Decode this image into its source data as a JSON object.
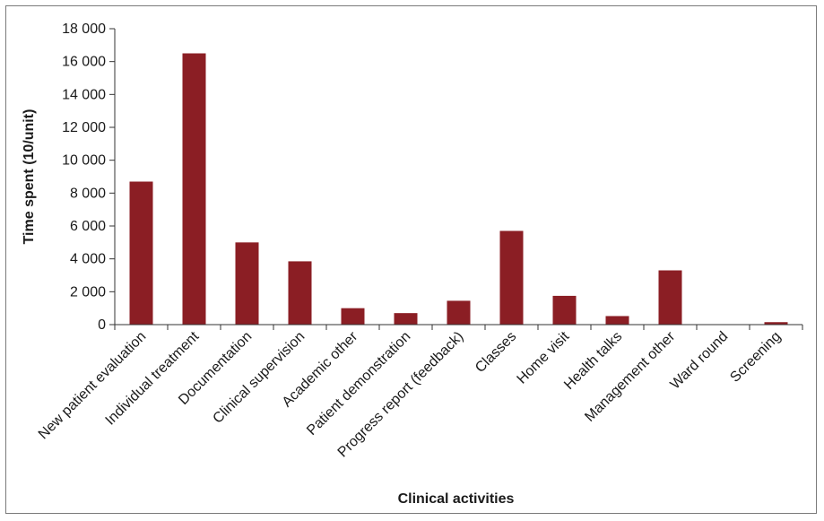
{
  "chart_data": {
    "type": "bar",
    "title": "",
    "xlabel": "Clinical activities",
    "ylabel": "Time spent (10/unit)",
    "ylim": [
      0,
      18000
    ],
    "yticks": [
      0,
      2000,
      4000,
      6000,
      8000,
      10000,
      12000,
      14000,
      16000,
      18000
    ],
    "ytick_labels": [
      "0",
      "2 000",
      "4 000",
      "6 000",
      "8 000",
      "10 000",
      "12 000",
      "14 000",
      "16 000",
      "18 000"
    ],
    "grid": false,
    "legend": "none",
    "bar_color": "#8b1e24",
    "categories": [
      "New patient evaluation",
      "Individual treatment",
      "Documentation",
      "Clinical supervision",
      "Academic other",
      "Patient demonstration",
      "Progress report (feedback)",
      "Classes",
      "Home visit",
      "Health talks",
      "Management other",
      "Ward round",
      "Screening"
    ],
    "values": [
      8700,
      16500,
      5000,
      3850,
      1000,
      700,
      1450,
      5700,
      1750,
      520,
      3300,
      0,
      150
    ]
  }
}
